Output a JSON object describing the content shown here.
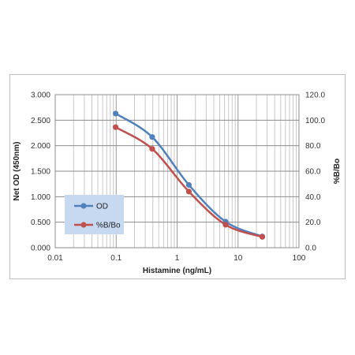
{
  "chart_data": {
    "type": "line",
    "xscale": "log",
    "xlabel": "Histamine (ng/mL)",
    "ylabel": "Net OD (450nm)",
    "y2label": "%B/Bo",
    "xlim": [
      0.01,
      100
    ],
    "ylim": [
      0,
      3
    ],
    "y2lim": [
      0,
      120
    ],
    "x_ticks": [
      "0.01",
      "0.1",
      "1",
      "10",
      "100"
    ],
    "y_ticks": [
      "0.000",
      "0.500",
      "1.000",
      "1.500",
      "2.000",
      "2.500",
      "3.000"
    ],
    "y2_ticks": [
      "0.0",
      "20.0",
      "40.0",
      "60.0",
      "80.0",
      "100.0",
      "120.0"
    ],
    "grid": true,
    "legend_position": "lower-left",
    "legend_bg": "#c6d9f1",
    "series": [
      {
        "name": "OD",
        "axis": "left",
        "color": "#4f81bd",
        "x": [
          0.098,
          0.39,
          1.56,
          6.25,
          25
        ],
        "values": [
          2.63,
          2.17,
          1.23,
          0.51,
          0.22
        ]
      },
      {
        "name": "%B/Bo",
        "axis": "right",
        "color": "#c0504d",
        "x": [
          0.098,
          0.39,
          1.56,
          6.25,
          25
        ],
        "values": [
          94.5,
          77.5,
          44.0,
          18.0,
          8.5
        ]
      }
    ]
  }
}
